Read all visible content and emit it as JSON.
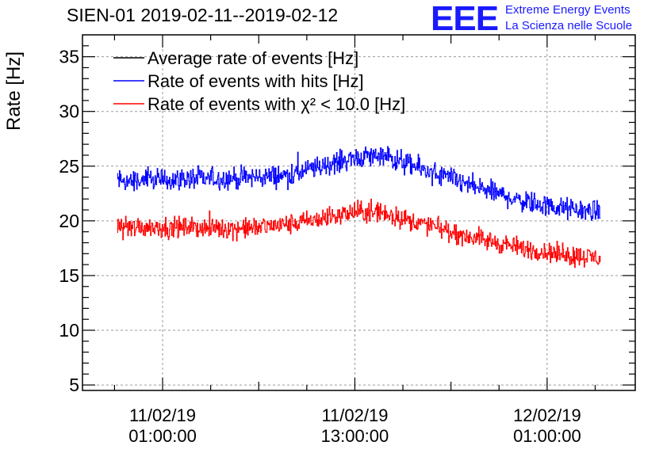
{
  "header": {
    "title": "SIEN-01 2019-02-11--2019-02-12",
    "logo": {
      "mark": "EEE",
      "line1": "Extreme Energy Events",
      "line2": "La Scienza nelle Scuole",
      "color": "#1a1aff"
    }
  },
  "chart_data": {
    "type": "line",
    "title": "SIEN-01 2019-02-11--2019-02-12",
    "xlabel": "",
    "ylabel": "Rate [Hz]",
    "xlim": [
      "2019-02-10T20:00:00",
      "2019-02-12T06:30:00"
    ],
    "ylim": [
      4.5,
      37
    ],
    "yticks": [
      5,
      10,
      15,
      20,
      25,
      30,
      35
    ],
    "xticks": [
      {
        "time": "2019-02-11T01:00:00",
        "label": [
          "11/02/19",
          "01:00:00"
        ]
      },
      {
        "time": "2019-02-11T13:00:00",
        "label": [
          "11/02/19",
          "13:00:00"
        ]
      },
      {
        "time": "2019-02-12T01:00:00",
        "label": [
          "12/02/19",
          "01:00:00"
        ]
      }
    ],
    "grid": true,
    "legend_position": "top-left",
    "series": [
      {
        "name": "Average rate of events [Hz]",
        "color": "#000000",
        "points": []
      },
      {
        "name": "Rate of events with hits [Hz]",
        "color": "#0000ff",
        "x_start": "2019-02-10T22:10:00",
        "x_end": "2019-02-12T04:20:00",
        "noise": 0.75,
        "points": [
          {
            "t": "2019-02-10T22:10:00",
            "v": 23.6
          },
          {
            "t": "2019-02-11T02:00:00",
            "v": 23.8
          },
          {
            "t": "2019-02-11T06:00:00",
            "v": 23.9
          },
          {
            "t": "2019-02-11T09:00:00",
            "v": 24.2
          },
          {
            "t": "2019-02-11T11:00:00",
            "v": 25.0
          },
          {
            "t": "2019-02-11T13:00:00",
            "v": 25.8
          },
          {
            "t": "2019-02-11T14:30:00",
            "v": 26.0
          },
          {
            "t": "2019-02-11T17:00:00",
            "v": 24.8
          },
          {
            "t": "2019-02-11T20:00:00",
            "v": 23.3
          },
          {
            "t": "2019-02-11T23:00:00",
            "v": 22.0
          },
          {
            "t": "2019-02-12T01:30:00",
            "v": 21.2
          },
          {
            "t": "2019-02-12T04:20:00",
            "v": 20.8
          }
        ]
      },
      {
        "name": "Rate of events with χ² < 10.0 [Hz]",
        "color": "#ff0000",
        "x_start": "2019-02-10T22:10:00",
        "x_end": "2019-02-12T04:20:00",
        "noise": 0.7,
        "points": [
          {
            "t": "2019-02-10T22:10:00",
            "v": 19.5
          },
          {
            "t": "2019-02-11T02:00:00",
            "v": 19.4
          },
          {
            "t": "2019-02-11T06:00:00",
            "v": 19.3
          },
          {
            "t": "2019-02-11T09:00:00",
            "v": 19.7
          },
          {
            "t": "2019-02-11T11:00:00",
            "v": 20.2
          },
          {
            "t": "2019-02-11T13:00:00",
            "v": 20.8
          },
          {
            "t": "2019-02-11T14:30:00",
            "v": 20.8
          },
          {
            "t": "2019-02-11T17:00:00",
            "v": 19.8
          },
          {
            "t": "2019-02-11T20:00:00",
            "v": 18.6
          },
          {
            "t": "2019-02-11T23:00:00",
            "v": 17.6
          },
          {
            "t": "2019-02-12T01:30:00",
            "v": 17.0
          },
          {
            "t": "2019-02-12T04:20:00",
            "v": 16.6
          }
        ]
      }
    ]
  }
}
